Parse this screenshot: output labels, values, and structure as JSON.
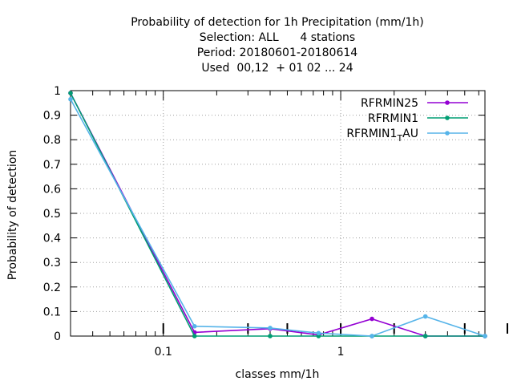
{
  "chart_data": {
    "type": "line",
    "title_lines": [
      "Probability of detection  for 1h Precipitation (mm/1h)",
      "Selection: ALL      4 stations",
      "Period: 20180601-20180614",
      "Used  00,12  + 01 02 ... 24"
    ],
    "xlabel": "classes mm/1h",
    "ylabel": "Probability of detection",
    "x_scale": "log",
    "xlim": [
      0.03,
      6.5
    ],
    "ylim": [
      0,
      1
    ],
    "x_ticks": [
      0.1,
      1
    ],
    "x_tick_labels": [
      "0.1",
      "1"
    ],
    "y_ticks": [
      0,
      0.1,
      0.2,
      0.3,
      0.4,
      0.5,
      0.6,
      0.7,
      0.8,
      0.9,
      1
    ],
    "y_tick_labels": [
      "0",
      "0.1",
      "0.2",
      "0.3",
      "0.4",
      "0.5",
      "0.6",
      "0.7",
      "0.8",
      "0.9",
      "1"
    ],
    "grid": true,
    "legend_position": "top-right",
    "x": [
      0.03,
      0.15,
      0.4,
      0.75,
      1.5,
      3.0,
      6.5
    ],
    "series": [
      {
        "name": "RFRMIN25",
        "name_main": "RFRMIN25",
        "name_sub": "",
        "name_tail": "",
        "color": "#9400d3",
        "values": [
          0.99,
          0.015,
          0.03,
          0.005,
          0.07,
          0.0,
          0.0
        ]
      },
      {
        "name": "RFRMIN1",
        "name_main": "RFRMIN1",
        "name_sub": "",
        "name_tail": "",
        "color": "#009e73",
        "values": [
          0.99,
          0.0,
          0.0,
          0.0,
          0.0,
          0.0,
          0.0
        ]
      },
      {
        "name": "RFRMIN1_TAU",
        "name_main": "RFRMIN1",
        "name_sub": "T",
        "name_tail": "AU",
        "color": "#56b4e9",
        "values": [
          0.965,
          0.04,
          0.033,
          0.012,
          0.0,
          0.08,
          0.0
        ]
      }
    ]
  }
}
